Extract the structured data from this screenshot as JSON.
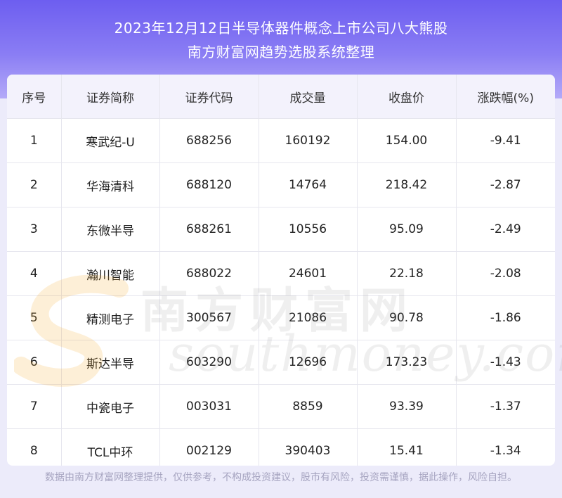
{
  "header": {
    "title": "2023年12月12日半导体器件概念上市公司八大熊股",
    "subtitle": "南方财富网趋势选股系统整理"
  },
  "table": {
    "columns": [
      "序号",
      "证券简称",
      "证券代码",
      "成交量",
      "收盘价",
      "涨跌幅(%)"
    ],
    "rows": [
      [
        "1",
        "寒武纪-U",
        "688256",
        "160192",
        "154.00",
        "-9.41"
      ],
      [
        "2",
        "华海清科",
        "688120",
        "14764",
        "218.42",
        "-2.87"
      ],
      [
        "3",
        "东微半导",
        "688261",
        "10556",
        "95.09",
        "-2.49"
      ],
      [
        "4",
        "瀚川智能",
        "688022",
        "24601",
        "22.18",
        "-2.08"
      ],
      [
        "5",
        "精测电子",
        "300567",
        "21086",
        "90.78",
        "-1.86"
      ],
      [
        "6",
        "斯达半导",
        "603290",
        "12696",
        "173.23",
        "-1.43"
      ],
      [
        "7",
        "中瓷电子",
        "003031",
        "8859",
        "93.39",
        "-1.37"
      ],
      [
        "8",
        "TCL中环",
        "002129",
        "390403",
        "15.41",
        "-1.34"
      ]
    ]
  },
  "watermark": {
    "cn": "南方财富网",
    "en": "southmoney.com"
  },
  "footer": {
    "disclaimer": "数据由南方财富网整理提供，仅供参考，不构成投资建议，股市有风险，投资需谨慎，据此操作，风险自担。"
  },
  "colors": {
    "header_top": "#6d5ef0",
    "header_bottom": "#b4aaf8",
    "background": "#ecebfa",
    "watermark_accent": "#f5a623"
  }
}
